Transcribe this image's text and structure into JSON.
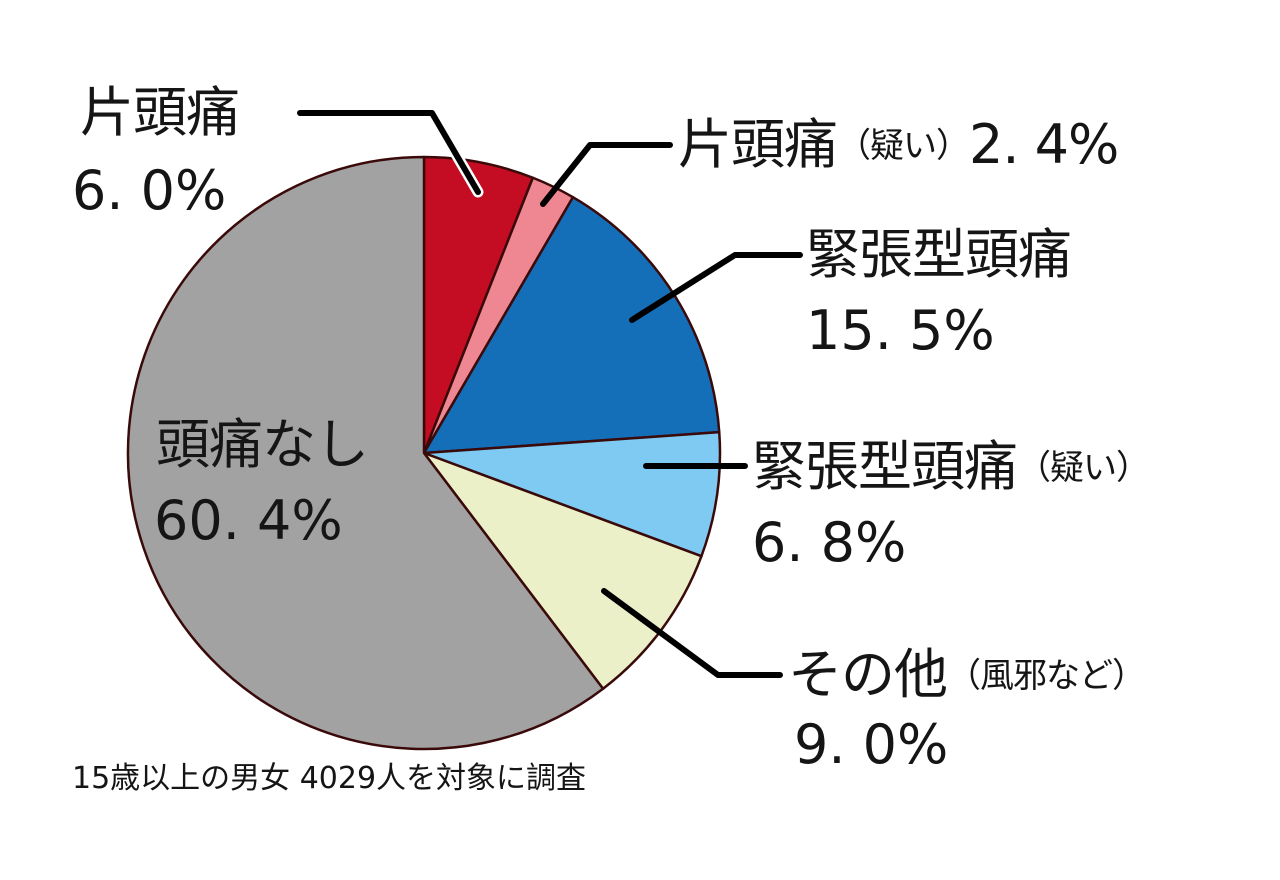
{
  "chart_data": {
    "type": "pie",
    "title": "",
    "start_angle_deg": 0,
    "direction": "clockwise",
    "slices": [
      {
        "label": "片頭痛",
        "label_suffix": "",
        "value": 6.0,
        "value_text": "6. 0%",
        "color": "#c40c23"
      },
      {
        "label": "片頭痛",
        "label_suffix": "（疑い）",
        "value": 2.4,
        "value_text": "2. 4%",
        "color": "#ee8791"
      },
      {
        "label": "緊張型頭痛",
        "label_suffix": "",
        "value": 15.5,
        "value_text": "15. 5%",
        "color": "#146fb8"
      },
      {
        "label": "緊張型頭痛",
        "label_suffix": "（疑い）",
        "value": 6.8,
        "value_text": "6. 8%",
        "color": "#7ecaf2"
      },
      {
        "label": "その他",
        "label_suffix": "（風邪など）",
        "value": 9.0,
        "value_text": "9. 0%",
        "color": "#ecf0c8"
      },
      {
        "label": "頭痛なし",
        "label_suffix": "",
        "value": 60.4,
        "value_text": "60. 4%",
        "color": "#a2a2a2"
      }
    ],
    "note": "15歳以上の男女 4029人を対象に調査",
    "edge_color": "#3a0a0a"
  },
  "labels": {
    "migraine": {
      "name": "片頭痛",
      "pct": "6. 0%"
    },
    "migraine_suspected": {
      "name": "片頭痛",
      "suffix": "（疑い）",
      "pct": "2. 4%"
    },
    "tension": {
      "name": "緊張型頭痛",
      "pct": "15. 5%"
    },
    "tension_suspected": {
      "name": "緊張型頭痛",
      "suffix": "（疑い）",
      "pct": "6. 8%"
    },
    "other": {
      "name": "その他",
      "suffix": "（風邪など）",
      "pct": "9. 0%"
    },
    "none": {
      "name": "頭痛なし",
      "pct": "60. 4%"
    }
  },
  "footnote": "15歳以上の男女 4029人を対象に調査"
}
